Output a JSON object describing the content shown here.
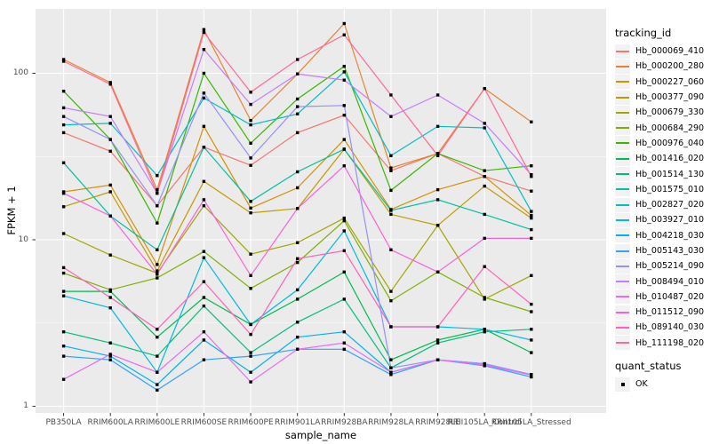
{
  "figure": {
    "background": "#ffffff",
    "panel_background": "#EBEBEB",
    "grid_color": "#FFFFFF",
    "tick_label_color": "#4D4D4D",
    "point_color": "#000000"
  },
  "axes": {
    "x_title": "sample_name",
    "y_title": "FPKM + 1"
  },
  "legend": {
    "tracking_title": "tracking_id",
    "quant_title": "quant_status",
    "quant_items": [
      {
        "label": "OK",
        "marker": "black-square"
      }
    ]
  },
  "chart_data": {
    "type": "line",
    "title": "",
    "xlabel": "sample_name",
    "ylabel": "FPKM + 1",
    "y_scale": "log10",
    "y_ticks": [
      1,
      10,
      100
    ],
    "y_minor_ticks": [
      3.162,
      31.62
    ],
    "ylim": [
      0.85,
      260
    ],
    "grid": true,
    "legend_position": "right",
    "legend_title": "tracking_id",
    "categories": [
      "PB350LA",
      "RRIM600LA",
      "RRIM600LE",
      "RRIM600SE",
      "RRIM600PE",
      "RRIM901LA",
      "RRIM928BA",
      "RRIM928LA",
      "RRIM928LE",
      "RRII105LA_Control",
      "RRII105LA_Stressed"
    ],
    "series": [
      {
        "name": "Hb_000069_410",
        "color": "#F8766D",
        "values": [
          44,
          34,
          16,
          36,
          28,
          44,
          56,
          26,
          33,
          24,
          19.6
        ]
      },
      {
        "name": "Hb_000200_280",
        "color": "#EA8331",
        "values": [
          121,
          88,
          20,
          183,
          52,
          99,
          199,
          27,
          33,
          81,
          51
        ]
      },
      {
        "name": "Hb_000227_060",
        "color": "#D89000",
        "values": [
          19.4,
          21.3,
          7.1,
          48,
          15.5,
          20.5,
          40,
          15.2,
          20,
          24,
          14
        ]
      },
      {
        "name": "Hb_000377_090",
        "color": "#C09B00",
        "values": [
          15.8,
          19.4,
          6.5,
          22.4,
          14.5,
          15.4,
          35,
          14.2,
          12.2,
          21,
          13.5
        ]
      },
      {
        "name": "Hb_000679_330",
        "color": "#A3A500",
        "values": [
          10.9,
          8.1,
          6.3,
          16,
          8.2,
          9.6,
          13.5,
          4.9,
          12.2,
          4.4,
          6.1
        ]
      },
      {
        "name": "Hb_000684_290",
        "color": "#7CAE00",
        "values": [
          6.3,
          5.0,
          5.9,
          8.5,
          5.1,
          7.3,
          13.0,
          4.3,
          6.4,
          4.5,
          3.7
        ]
      },
      {
        "name": "Hb_000976_040",
        "color": "#39B600",
        "values": [
          78,
          40,
          12.6,
          100,
          38,
          70,
          110,
          19.8,
          33,
          26,
          27.8
        ]
      },
      {
        "name": "Hb_001416_020",
        "color": "#00BB4E",
        "values": [
          4.9,
          4.9,
          2.6,
          4.5,
          3.1,
          4.4,
          6.4,
          1.9,
          2.5,
          2.9,
          2.1
        ]
      },
      {
        "name": "Hb_001514_130",
        "color": "#00BF7D",
        "values": [
          2.8,
          2.4,
          2.0,
          4.0,
          2.1,
          3.2,
          4.4,
          1.7,
          2.4,
          2.8,
          2.9
        ]
      },
      {
        "name": "Hb_001575_010",
        "color": "#00C1A3",
        "values": [
          29,
          13.9,
          8.7,
          36,
          17,
          25.6,
          35,
          15,
          17.4,
          14.2,
          11.5
        ]
      },
      {
        "name": "Hb_002827_020",
        "color": "#00BFC4",
        "values": [
          49,
          50,
          24.3,
          71,
          49,
          57,
          102,
          32,
          48,
          47,
          14.8
        ]
      },
      {
        "name": "Hb_003927_010",
        "color": "#00BAE0",
        "values": [
          4.6,
          3.9,
          1.6,
          7.8,
          3.1,
          5.0,
          11.3,
          3.0,
          3.0,
          2.9,
          2.5
        ]
      },
      {
        "name": "Hb_004218_030",
        "color": "#00B0F6",
        "values": [
          2.3,
          2.0,
          1.35,
          2.5,
          1.6,
          2.6,
          2.8,
          1.6,
          1.9,
          1.8,
          1.55
        ]
      },
      {
        "name": "Hb_005143_030",
        "color": "#35A2FF",
        "values": [
          2.0,
          1.9,
          1.25,
          1.9,
          2.0,
          2.2,
          2.2,
          1.55,
          1.9,
          1.75,
          1.5
        ]
      },
      {
        "name": "Hb_005214_090",
        "color": "#9590FF",
        "values": [
          55,
          40,
          16,
          76,
          31,
          63,
          64,
          1.7,
          1.9,
          1.8,
          1.55
        ]
      },
      {
        "name": "Hb_008494_010",
        "color": "#C77CFF",
        "values": [
          62,
          55,
          19.1,
          139,
          65,
          99,
          91,
          55,
          74,
          50,
          24.6
        ]
      },
      {
        "name": "Hb_010487_020",
        "color": "#E76BF3",
        "values": [
          1.45,
          2.05,
          1.6,
          2.8,
          1.4,
          2.2,
          2.4,
          1.6,
          1.9,
          1.77,
          1.54
        ]
      },
      {
        "name": "Hb_011512_090",
        "color": "#FA62DB",
        "values": [
          19,
          13.9,
          6.2,
          17.4,
          6.1,
          15.4,
          27.8,
          8.7,
          6.4,
          10.2,
          10.2
        ]
      },
      {
        "name": "Hb_089140_030",
        "color": "#FF62BC",
        "values": [
          6.8,
          4.5,
          2.9,
          5.6,
          2.7,
          7.7,
          8.6,
          3.0,
          3.0,
          6.9,
          4.1
        ]
      },
      {
        "name": "Hb_111198_020",
        "color": "#FF6A98",
        "values": [
          118,
          86,
          19,
          176,
          77,
          121,
          170,
          74,
          32,
          81,
          24
        ]
      }
    ],
    "secondary_legend": {
      "title": "quant_status",
      "items": [
        {
          "label": "OK",
          "marker": "black-square"
        }
      ]
    }
  }
}
